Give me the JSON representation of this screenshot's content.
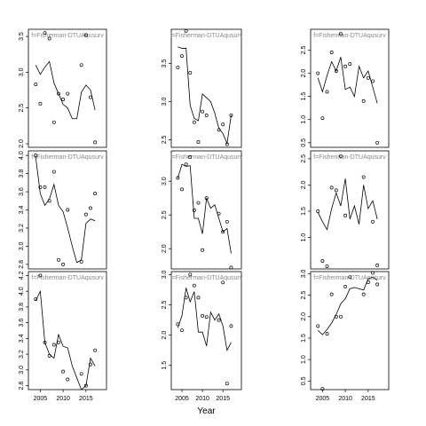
{
  "chart_data": [
    {
      "type": "line",
      "label": "f=Fisherman-DTUAqusurv",
      "x": [
        2004,
        2005,
        2006,
        2007,
        2008,
        2009,
        2010,
        2011,
        2012,
        2013,
        2014,
        2015,
        2016,
        2017
      ],
      "xlim": [
        2002.4,
        2019.5
      ],
      "ylim": [
        1.95,
        3.6
      ],
      "yticks": [
        {
          "value": 2,
          "label": "2.0"
        },
        2.5,
        {
          "value": 3,
          "label": "3.0"
        },
        3.5
      ],
      "series": [
        {
          "style": "points",
          "color": "#000000",
          "values": [
            2.83,
            2.56,
            3.55,
            3.47,
            2.3,
            2.7,
            2.62,
            2.7,
            null,
            null,
            3.1,
            3.52,
            2.65,
            2.02
          ]
        },
        {
          "style": "line",
          "color": "#000000",
          "values": [
            3.1,
            2.97,
            3.07,
            3.15,
            2.85,
            2.7,
            2.55,
            2.5,
            2.35,
            2.35,
            2.72,
            2.82,
            2.75,
            2.47
          ]
        }
      ]
    },
    {
      "type": "line",
      "label": "f=Fisherman-DTUAqusurv",
      "x": [
        2004,
        2005,
        2006,
        2007,
        2008,
        2009,
        2010,
        2011,
        2012,
        2013,
        2014,
        2015,
        2016,
        2017
      ],
      "xlim": [
        2002.4,
        2019.5
      ],
      "ylim": [
        2.4,
        3.95
      ],
      "yticks": [
        2.5,
        {
          "value": 3,
          "label": "3.0"
        },
        3.5
      ],
      "series": [
        {
          "style": "points",
          "color": "#000000",
          "values": [
            3.45,
            3.6,
            3.93,
            3.38,
            2.73,
            2.47,
            2.87,
            2.82,
            null,
            null,
            2.63,
            2.7,
            2.44,
            2.82
          ]
        },
        {
          "style": "line",
          "color": "#000000",
          "values": [
            3.72,
            3.7,
            3.7,
            2.95,
            2.78,
            2.75,
            3.1,
            3.05,
            3.0,
            2.85,
            2.65,
            2.58,
            2.45,
            2.82
          ]
        }
      ]
    },
    {
      "type": "line",
      "label": "f=Fisherman-DTUAqusurv",
      "x": [
        2004,
        2005,
        2006,
        2007,
        2008,
        2009,
        2010,
        2011,
        2012,
        2013,
        2014,
        2015,
        2016,
        2017
      ],
      "xlim": [
        2002.4,
        2019.5
      ],
      "ylim": [
        0.4,
        2.95
      ],
      "yticks": [
        0.5,
        {
          "value": 1,
          "label": "1.0"
        },
        1.5,
        {
          "value": 2,
          "label": "2.0"
        },
        2.5
      ],
      "series": [
        {
          "style": "points",
          "color": "#000000",
          "values": [
            2.0,
            1.03,
            1.6,
            2.45,
            2.05,
            2.85,
            2.15,
            2.2,
            null,
            null,
            1.4,
            1.9,
            1.83,
            0.5
          ]
        },
        {
          "style": "line",
          "color": "#000000",
          "values": [
            1.9,
            1.6,
            1.95,
            2.25,
            2.05,
            2.35,
            1.65,
            1.7,
            1.5,
            2.15,
            1.9,
            2.05,
            1.7,
            1.35
          ]
        }
      ]
    },
    {
      "type": "line",
      "label": "f=Fisherman-DTUAqusurv",
      "x": [
        2004,
        2005,
        2006,
        2007,
        2008,
        2009,
        2010,
        2011,
        2012,
        2013,
        2014,
        2015,
        2016,
        2017
      ],
      "xlim": [
        2002.4,
        2019.5
      ],
      "ylim": [
        2.75,
        4.05
      ],
      "yticks": [
        2.8,
        {
          "value": 3,
          "label": "3.0"
        },
        3.2,
        3.4,
        3.6,
        3.8,
        {
          "value": 4,
          "label": "4.0"
        }
      ],
      "series": [
        {
          "style": "points",
          "color": "#000000",
          "values": [
            4.0,
            3.65,
            3.65,
            3.5,
            3.82,
            2.85,
            2.8,
            3.4,
            null,
            null,
            2.83,
            3.35,
            3.42,
            3.58
          ]
        },
        {
          "style": "line",
          "color": "#000000",
          "values": [
            3.98,
            3.58,
            3.45,
            3.52,
            3.68,
            3.45,
            3.38,
            3.2,
            3.0,
            2.82,
            2.85,
            3.25,
            3.3,
            3.28
          ]
        }
      ]
    },
    {
      "type": "line",
      "label": "f=Fisherman-DTUAqusurv",
      "x": [
        2004,
        2005,
        2006,
        2007,
        2008,
        2009,
        2010,
        2011,
        2012,
        2013,
        2014,
        2015,
        2016,
        2017
      ],
      "xlim": [
        2002.4,
        2019.5
      ],
      "ylim": [
        1.7,
        3.45
      ],
      "yticks": [
        {
          "value": 2,
          "label": "2.0"
        },
        2.5,
        {
          "value": 3,
          "label": "3.0"
        }
      ],
      "series": [
        {
          "style": "points",
          "color": "#000000",
          "values": [
            3.05,
            2.88,
            3.25,
            3.36,
            2.57,
            2.68,
            1.98,
            2.75,
            null,
            null,
            2.52,
            2.25,
            2.4,
            1.72
          ]
        },
        {
          "style": "line",
          "color": "#000000",
          "values": [
            3.05,
            3.25,
            3.22,
            3.23,
            2.45,
            2.45,
            2.22,
            2.75,
            2.6,
            2.65,
            2.45,
            2.25,
            2.3,
            1.93
          ]
        }
      ]
    },
    {
      "type": "line",
      "label": "f=Fisherman-DTUAqusurv",
      "x": [
        2004,
        2005,
        2006,
        2007,
        2008,
        2009,
        2010,
        2011,
        2012,
        2013,
        2014,
        2015,
        2016,
        2017
      ],
      "xlim": [
        2002.4,
        2019.5
      ],
      "ylim": [
        0.4,
        2.65
      ],
      "yticks": [
        {
          "value": 1,
          "label": "1.0"
        },
        1.5,
        {
          "value": 2,
          "label": "2.0"
        },
        2.5
      ],
      "series": [
        {
          "style": "points",
          "color": "#000000",
          "values": [
            1.5,
            0.55,
            0.45,
            1.95,
            1.9,
            2.55,
            1.42,
            null,
            null,
            null,
            2.15,
            null,
            1.3,
            0.47
          ]
        },
        {
          "style": "line",
          "color": "#000000",
          "values": [
            1.48,
            1.3,
            1.15,
            1.55,
            1.85,
            1.6,
            2.12,
            1.35,
            1.6,
            1.25,
            2.0,
            1.55,
            1.7,
            1.35
          ]
        }
      ]
    },
    {
      "type": "line",
      "label": "f=Fisherman-DTUAqusurv",
      "x": [
        2004,
        2005,
        2006,
        2007,
        2008,
        2009,
        2010,
        2011,
        2012,
        2013,
        2014,
        2015,
        2016,
        2017
      ],
      "xlim": [
        2002.4,
        2019.5
      ],
      "ylim": [
        2.75,
        4.25
      ],
      "xticks": [
        2005,
        2010,
        2015
      ],
      "yticks": [
        2.8,
        {
          "value": 3,
          "label": "3.0"
        },
        3.2,
        3.4,
        3.6,
        3.8,
        {
          "value": 4,
          "label": "4.0"
        },
        4.2
      ],
      "series": [
        {
          "style": "points",
          "color": "#000000",
          "values": [
            3.9,
            4.2,
            3.35,
            3.18,
            3.32,
            3.35,
            2.98,
            2.88,
            null,
            null,
            2.95,
            2.8,
            3.07,
            3.25
          ]
        },
        {
          "style": "line",
          "color": "#000000",
          "values": [
            3.88,
            4.0,
            3.35,
            3.2,
            3.15,
            3.45,
            3.3,
            3.28,
            3.05,
            2.9,
            2.75,
            2.8,
            3.15,
            3.05
          ]
        }
      ]
    },
    {
      "type": "line",
      "label": "f=Fisherman-DTUAqusurv",
      "xlabel": "Year",
      "x": [
        2004,
        2005,
        2006,
        2007,
        2008,
        2009,
        2010,
        2011,
        2012,
        2013,
        2014,
        2015,
        2016,
        2017
      ],
      "xlim": [
        2002.4,
        2019.5
      ],
      "ylim": [
        1.1,
        3.05
      ],
      "xticks": [
        2005,
        2010,
        2015
      ],
      "yticks": [
        1.5,
        {
          "value": 2,
          "label": "2.0"
        },
        2.5,
        {
          "value": 3,
          "label": "3.0"
        }
      ],
      "series": [
        {
          "style": "points",
          "color": "#000000",
          "values": [
            2.18,
            2.08,
            2.62,
            3.0,
            2.82,
            2.62,
            2.32,
            2.3,
            null,
            null,
            2.25,
            2.87,
            1.2,
            2.15
          ]
        },
        {
          "style": "line",
          "color": "#000000",
          "values": [
            2.12,
            2.32,
            2.78,
            2.55,
            2.72,
            2.05,
            2.05,
            1.82,
            2.38,
            2.25,
            2.35,
            2.15,
            1.75,
            1.88
          ]
        }
      ]
    },
    {
      "type": "line",
      "label": "f=Fisherman-DTUAqusurv",
      "x": [
        2004,
        2005,
        2006,
        2007,
        2008,
        2009,
        2010,
        2011,
        2012,
        2013,
        2014,
        2015,
        2016,
        2017
      ],
      "xlim": [
        2002.4,
        2019.5
      ],
      "ylim": [
        0.3,
        3.05
      ],
      "xticks": [
        2005,
        2010,
        2015
      ],
      "yticks": [
        0.5,
        {
          "value": 1,
          "label": "1.0"
        },
        1.5,
        {
          "value": 2,
          "label": "2.0"
        },
        2.5,
        {
          "value": 3,
          "label": "3.0"
        }
      ],
      "series": [
        {
          "style": "points",
          "color": "#000000",
          "values": [
            1.78,
            0.32,
            1.6,
            2.52,
            2.0,
            2.0,
            2.7,
            2.92,
            null,
            null,
            2.52,
            2.8,
            3.02,
            2.75
          ]
        },
        {
          "style": "line",
          "color": "#000000",
          "values": [
            1.68,
            1.58,
            1.7,
            1.85,
            2.05,
            2.3,
            2.42,
            2.65,
            2.68,
            2.65,
            2.62,
            2.88,
            2.92,
            2.85
          ]
        }
      ]
    }
  ]
}
